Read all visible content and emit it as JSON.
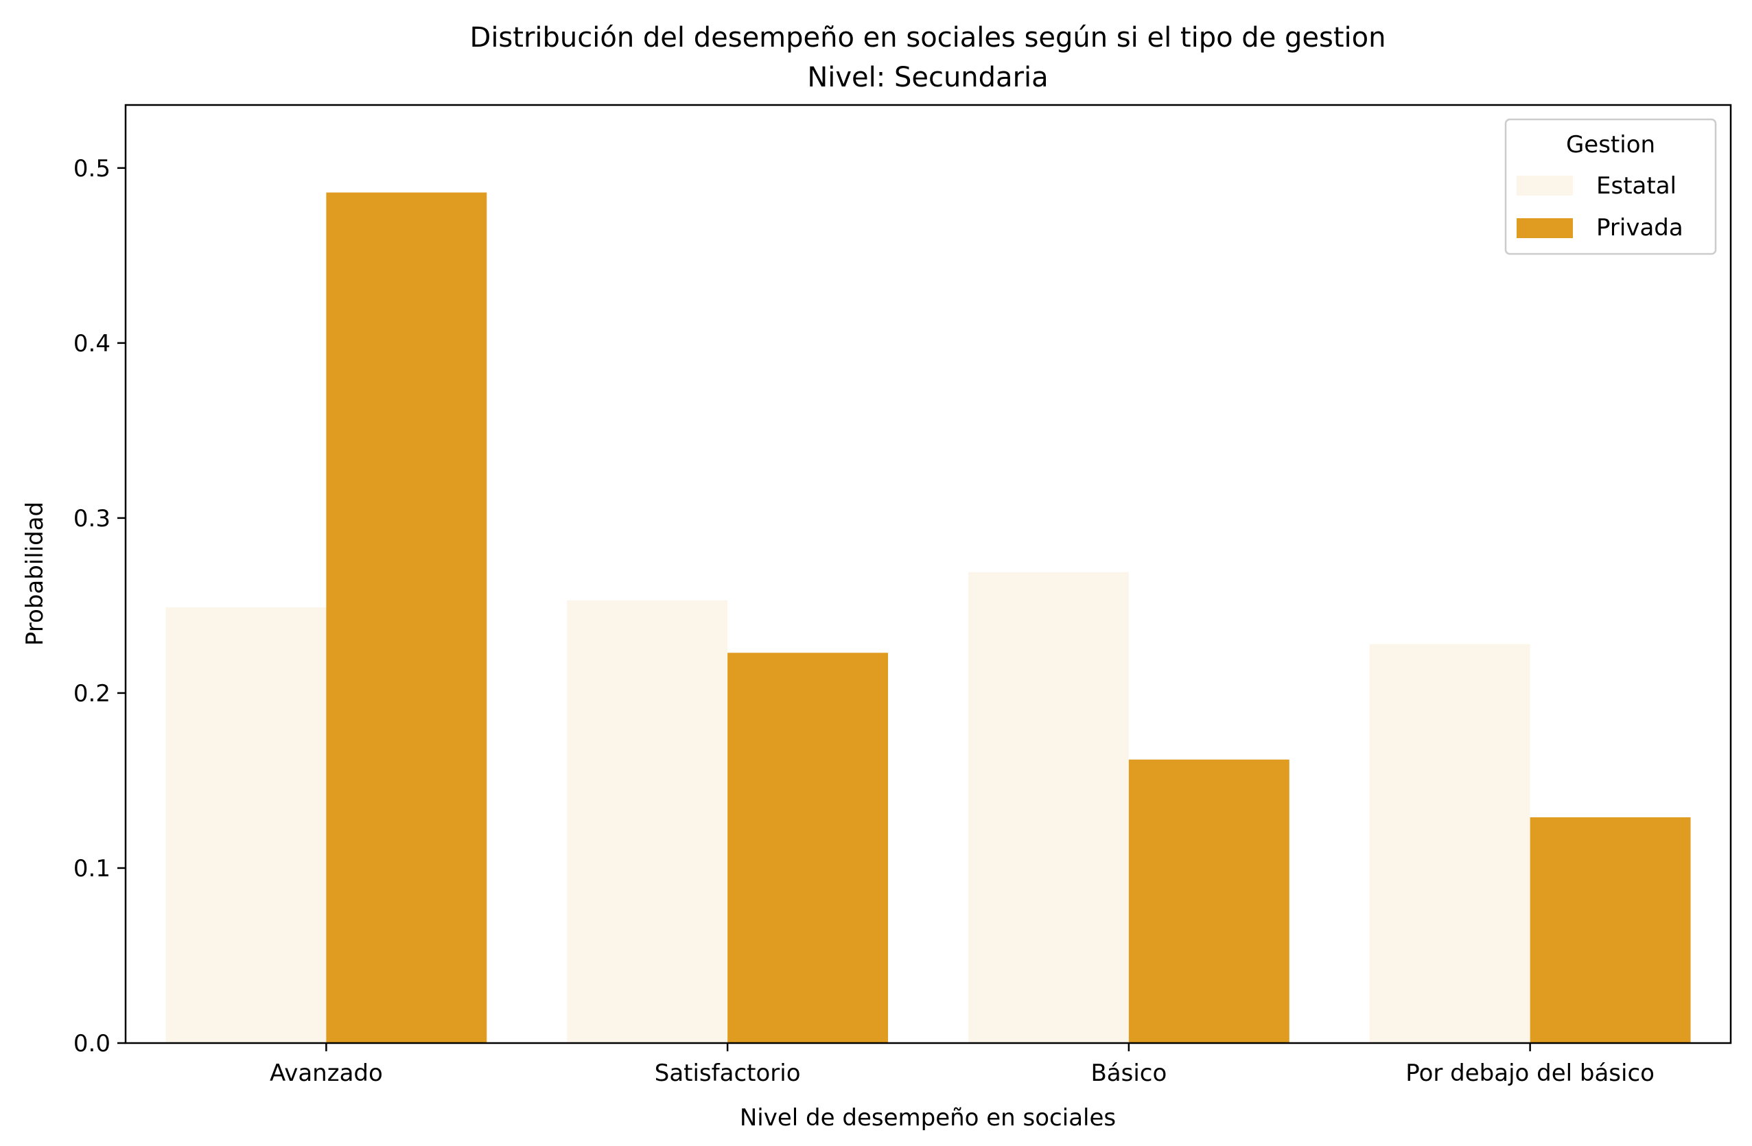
{
  "chart_data": {
    "type": "bar",
    "title": "Distribución del desempeño en sociales según si el tipo de gestion",
    "subtitle": "Nivel: Secundaria",
    "xlabel": "Nivel de desempeño en sociales",
    "ylabel": "Probabilidad",
    "categories": [
      "Avanzado",
      "Satisfactorio",
      "Básico",
      "Por debajo del básico"
    ],
    "series": [
      {
        "name": "Estatal",
        "color": "#FCF5E9",
        "values": [
          0.249,
          0.253,
          0.269,
          0.228
        ]
      },
      {
        "name": "Privada",
        "color": "#E09C21",
        "values": [
          0.486,
          0.223,
          0.162,
          0.129
        ]
      }
    ],
    "ylim": [
      0,
      0.536
    ],
    "yticks": [
      "0.0",
      "0.1",
      "0.2",
      "0.3",
      "0.4",
      "0.5"
    ],
    "legend": {
      "title": "Gestion",
      "position": "top-right"
    },
    "grid": false
  }
}
